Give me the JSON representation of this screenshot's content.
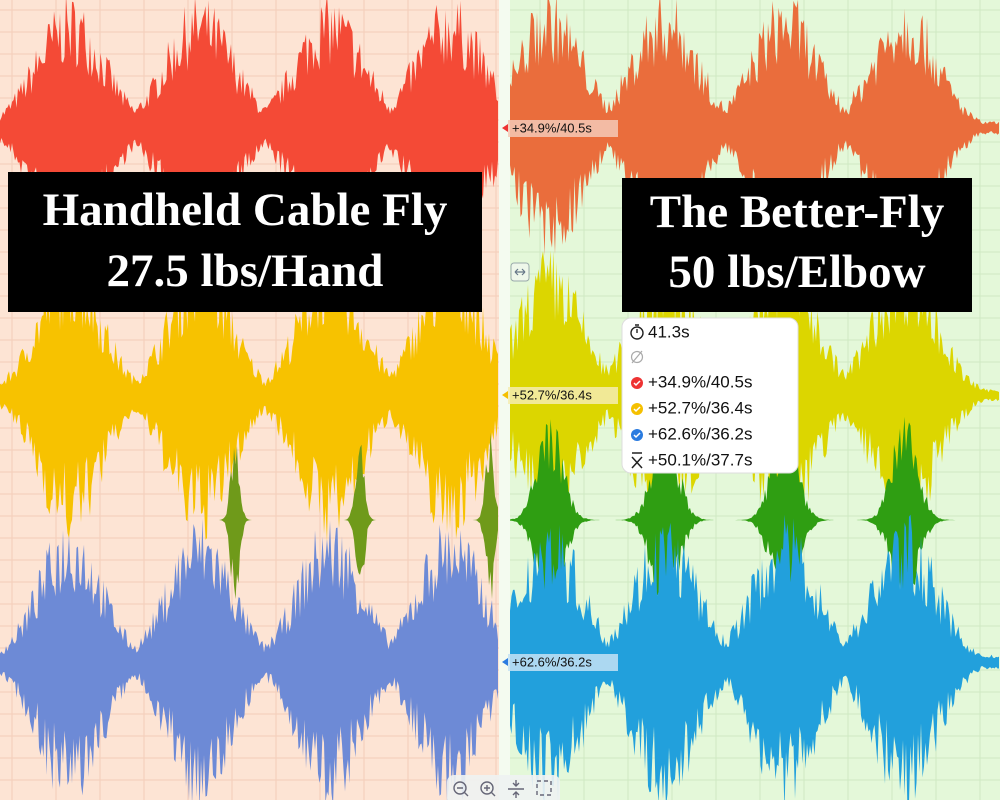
{
  "left_panel": {
    "title_lines": [
      "Handheld Cable Fly",
      "27.5 lbs/Hand"
    ]
  },
  "right_panel": {
    "title_lines": [
      "The Better-Fly",
      "50 lbs/Elbow"
    ]
  },
  "markers": [
    "+34.9%/40.5s",
    "+52.7%/36.4s",
    "+62.6%/36.2s"
  ],
  "tooltip": {
    "time": "41.3s",
    "rows": [
      "+34.9%/40.5s",
      "+52.7%/36.4s",
      "+62.6%/36.2s"
    ],
    "mean": "+50.1%/37.7s"
  }
}
